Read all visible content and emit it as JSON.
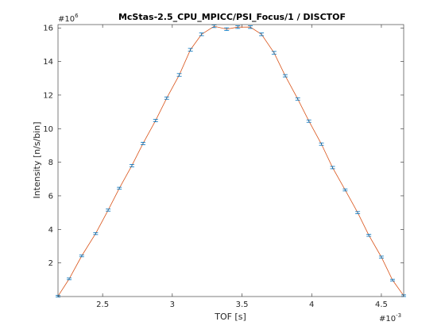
{
  "chart_data": {
    "type": "line",
    "title": "McStas-2.5_CPU_MPICC/PSI_Focus/1 / DISCTOF",
    "xlabel": "TOF [s]",
    "ylabel": "Intensity [n/s/bin]",
    "x_exponent_base": "#10",
    "x_exponent_power": "-3",
    "y_exponent_base": "#10",
    "y_exponent_power": "6",
    "xlim": [
      2.18,
      4.66
    ],
    "ylim": [
      0.0,
      16.2
    ],
    "xticks": [
      2.5,
      3,
      3.5,
      4,
      4.5
    ],
    "xtick_labels": [
      "2.5",
      "3",
      "3.5",
      "4",
      "4.5"
    ],
    "yticks": [
      2,
      4,
      6,
      8,
      10,
      12,
      14,
      16
    ],
    "ytick_labels": [
      "2",
      "4",
      "6",
      "8",
      "10",
      "12",
      "14",
      "16"
    ],
    "grid": false,
    "line_color": "#d95319",
    "errorbar_color": "#0072bd",
    "series": [
      {
        "x": [
          2.18,
          2.26,
          2.35,
          2.45,
          2.54,
          2.62,
          2.71,
          2.79,
          2.88,
          2.96,
          3.05,
          3.13,
          3.21,
          3.3,
          3.39,
          3.47,
          3.56,
          3.64,
          3.73,
          3.81,
          3.9,
          3.98,
          4.07,
          4.15,
          4.24,
          4.33,
          4.41,
          4.5,
          4.58,
          4.66
        ],
        "values": [
          0.02,
          1.05,
          2.42,
          3.75,
          5.15,
          6.45,
          7.8,
          9.12,
          10.48,
          11.82,
          13.2,
          14.7,
          15.62,
          16.1,
          15.93,
          16.05,
          16.05,
          15.62,
          14.52,
          13.15,
          11.77,
          10.45,
          9.08,
          7.68,
          6.35,
          5.0,
          3.65,
          2.35,
          0.98,
          0.05
        ],
        "errors": [
          0.05,
          0.05,
          0.05,
          0.06,
          0.06,
          0.06,
          0.07,
          0.07,
          0.07,
          0.07,
          0.08,
          0.08,
          0.08,
          0.08,
          0.08,
          0.08,
          0.08,
          0.08,
          0.08,
          0.07,
          0.07,
          0.07,
          0.07,
          0.07,
          0.06,
          0.06,
          0.06,
          0.06,
          0.05,
          0.05
        ]
      }
    ]
  }
}
